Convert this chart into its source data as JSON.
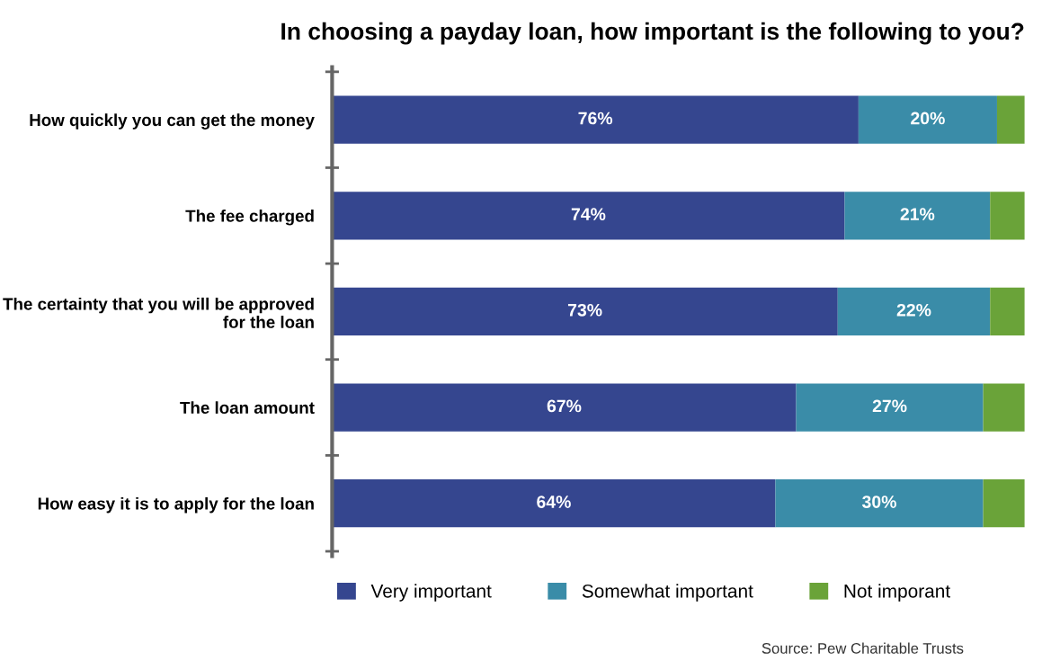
{
  "chart_data": {
    "type": "bar",
    "orientation": "horizontal",
    "stacked": true,
    "title": "In choosing a payday loan, how important is the following to you?",
    "categories": [
      "How quickly you can get the money",
      "The fee charged",
      "The certainty that you will be approved\nfor the loan",
      "The loan amount",
      "How easy it is to apply for the loan"
    ],
    "series": [
      {
        "name": "Very important",
        "color": "#35468f",
        "values": [
          76,
          74,
          73,
          67,
          64
        ],
        "value_labels": [
          "76%",
          "74%",
          "73%",
          "67%",
          "64%"
        ]
      },
      {
        "name": "Somewhat important",
        "color": "#3a8ca8",
        "values": [
          20,
          21,
          22,
          27,
          30
        ],
        "value_labels": [
          "20%",
          "21%",
          "22%",
          "27%",
          "30%"
        ]
      },
      {
        "name": "Not imporant",
        "color": "#6aa339",
        "values": [
          4,
          5,
          5,
          6,
          6
        ]
      }
    ],
    "xlim": [
      0,
      100
    ],
    "tick_labels": "y",
    "grid": false,
    "legend": "bottom",
    "annotations": [
      "Source: Pew Charitable Trusts"
    ]
  }
}
